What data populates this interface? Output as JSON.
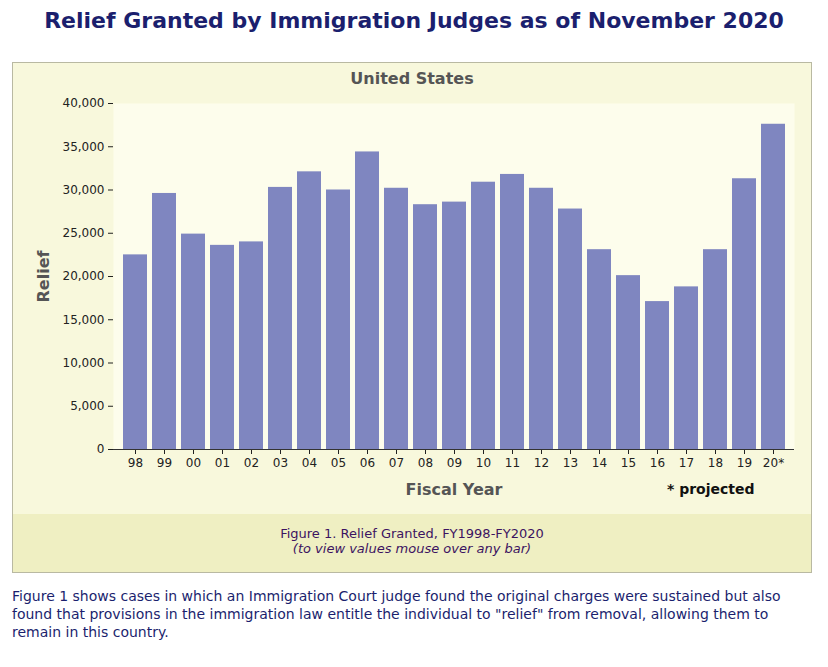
{
  "header": {
    "title": "Relief Granted by Immigration Judges as of November 2020"
  },
  "chart_data": {
    "type": "bar",
    "title": "United States",
    "x_label": "Fiscal Year",
    "y_label": "Relief",
    "annotations": [
      "* projected"
    ],
    "categories": [
      "98",
      "99",
      "00",
      "01",
      "02",
      "03",
      "04",
      "05",
      "06",
      "07",
      "08",
      "09",
      "10",
      "11",
      "12",
      "13",
      "14",
      "15",
      "16",
      "17",
      "18",
      "19",
      "20*"
    ],
    "values": [
      22500,
      29600,
      24900,
      23600,
      24000,
      30300,
      32100,
      30000,
      34400,
      30200,
      28300,
      28600,
      30900,
      31800,
      30200,
      27800,
      23100,
      20100,
      17100,
      18800,
      23100,
      31300,
      37600
    ],
    "color": "#7f86c0",
    "ylim": [
      0,
      40000
    ],
    "yticks": [
      0,
      {
        "value": 5000,
        "label": "5,000"
      },
      {
        "value": 10000,
        "label": "10,000"
      },
      {
        "value": 15000,
        "label": "15,000"
      },
      {
        "value": 20000,
        "label": "20,000"
      },
      {
        "value": 25000,
        "label": "25,000"
      },
      {
        "value": 30000,
        "label": "30,000"
      },
      {
        "value": 35000,
        "label": "35,000"
      },
      {
        "value": 40000,
        "label": "40,000"
      }
    ],
    "grid": false,
    "data_labels": false
  },
  "caption": {
    "title": "Figure 1. Relief Granted, FY1998-FY2020",
    "note": "(to view values mouse over any bar)"
  },
  "footer": {
    "text": "Figure 1 shows cases in which an Immigration Court judge found the original charges were sustained but also found that provisions in the immigration law entitle the individual to \"relief\" from removal, allowing them to remain in this country."
  }
}
